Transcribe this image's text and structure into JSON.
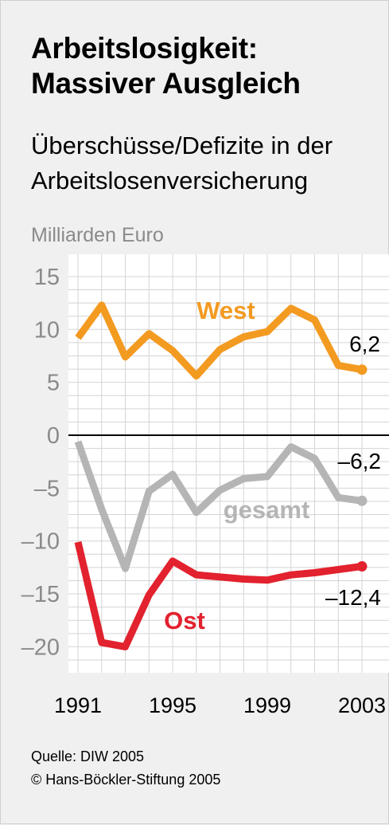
{
  "title_line1": "Arbeitslosigkeit:",
  "title_line2": "Massiver Ausgleich",
  "subtitle_line1": "Überschüsse/Defizite in der",
  "subtitle_line2": "Arbeitslosenversicherung",
  "unit_label": "Milliarden Euro",
  "source": "Quelle: DIW 2005",
  "copyright": "© Hans-Böckler-Stiftung 2005",
  "chart_data": {
    "type": "line",
    "x": [
      1991,
      1992,
      1993,
      1994,
      1995,
      1996,
      1997,
      1998,
      1999,
      2000,
      2001,
      2002,
      2003
    ],
    "x_tick_labels": [
      "1991",
      "1995",
      "1999",
      "2003"
    ],
    "y_tick_labels": [
      "15",
      "10",
      "5",
      "0",
      "–5",
      "–10",
      "–15",
      "–20"
    ],
    "y_ticks": [
      15,
      10,
      5,
      0,
      -5,
      -10,
      -15,
      -20
    ],
    "ylim": [
      -22.5,
      15
    ],
    "xlim": [
      1991,
      2003
    ],
    "grid": true,
    "series": [
      {
        "name": "West",
        "color": "#f39a21",
        "values": [
          9.2,
          12.3,
          7.4,
          9.6,
          8.0,
          5.6,
          8.1,
          9.3,
          9.8,
          12.0,
          10.9,
          6.6,
          6.2
        ],
        "end_label": "6,2"
      },
      {
        "name": "gesamt",
        "color": "#b5b5b5",
        "values": [
          -0.6,
          -7.0,
          -12.6,
          -5.3,
          -3.7,
          -7.3,
          -5.2,
          -4.1,
          -3.9,
          -1.1,
          -2.2,
          -5.9,
          -6.2
        ],
        "end_label": "–6,2"
      },
      {
        "name": "Ost",
        "color": "#e2222e",
        "values": [
          -10.1,
          -19.6,
          -20.0,
          -15.1,
          -11.9,
          -13.2,
          -13.4,
          -13.6,
          -13.7,
          -13.2,
          -13.0,
          -12.7,
          -12.4
        ],
        "end_label": "–12,4"
      }
    ]
  }
}
